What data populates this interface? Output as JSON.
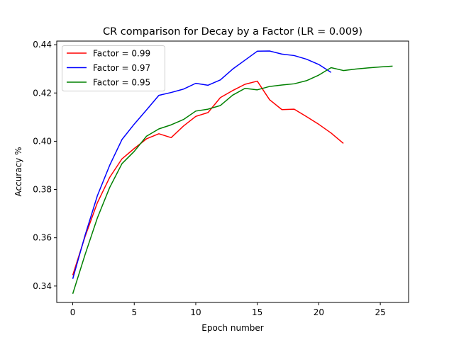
{
  "chart_data": {
    "type": "line",
    "title": "CR comparison for Decay by a Factor (LR = 0.009)",
    "xlabel": "Epoch number",
    "ylabel": "Accuracy %",
    "xlim": [
      -1.3,
      27.3
    ],
    "ylim": [
      0.3332,
      0.4415
    ],
    "xticks": [
      0,
      5,
      10,
      15,
      20,
      25
    ],
    "xtick_labels": [
      "0",
      "5",
      "10",
      "15",
      "20",
      "25"
    ],
    "yticks": [
      0.34,
      0.36,
      0.38,
      0.4,
      0.42,
      0.44
    ],
    "ytick_labels": [
      "0.34",
      "0.36",
      "0.38",
      "0.40",
      "0.42",
      "0.44"
    ],
    "grid": false,
    "legend_position": "top-left",
    "series": [
      {
        "name": "Factor = 0.99",
        "color": "#ff0000",
        "x": [
          0,
          1,
          2,
          3,
          4,
          5,
          6,
          7,
          8,
          9,
          10,
          11,
          12,
          13,
          14,
          15,
          16,
          17,
          18,
          19,
          20,
          21,
          22
        ],
        "values": [
          0.3445,
          0.3605,
          0.3745,
          0.385,
          0.3927,
          0.397,
          0.401,
          0.4031,
          0.4015,
          0.4063,
          0.4103,
          0.4119,
          0.4181,
          0.421,
          0.4236,
          0.4249,
          0.4172,
          0.4131,
          0.4133,
          0.4102,
          0.407,
          0.4034,
          0.3991
        ]
      },
      {
        "name": "Factor = 0.97",
        "color": "#0000ff",
        "x": [
          0,
          1,
          2,
          3,
          4,
          5,
          6,
          7,
          8,
          9,
          10,
          11,
          12,
          13,
          14,
          15,
          16,
          17,
          18,
          19,
          20,
          21
        ],
        "values": [
          0.343,
          0.361,
          0.3774,
          0.39,
          0.4007,
          0.4071,
          0.413,
          0.419,
          0.4202,
          0.4216,
          0.424,
          0.4232,
          0.4254,
          0.4299,
          0.4336,
          0.4373,
          0.4374,
          0.4361,
          0.4355,
          0.434,
          0.4318,
          0.4285
        ]
      },
      {
        "name": "Factor = 0.95",
        "color": "#008000",
        "x": [
          0,
          1,
          2,
          3,
          4,
          5,
          6,
          7,
          8,
          9,
          10,
          11,
          12,
          13,
          14,
          15,
          16,
          17,
          18,
          19,
          20,
          21,
          22,
          23,
          24,
          25,
          26
        ],
        "values": [
          0.3368,
          0.353,
          0.3682,
          0.3808,
          0.3907,
          0.3958,
          0.4021,
          0.4051,
          0.4068,
          0.409,
          0.4125,
          0.4133,
          0.4148,
          0.4191,
          0.4219,
          0.4213,
          0.4227,
          0.4233,
          0.4238,
          0.4251,
          0.4274,
          0.4305,
          0.4293,
          0.4299,
          0.4304,
          0.4308,
          0.4311
        ]
      }
    ]
  }
}
